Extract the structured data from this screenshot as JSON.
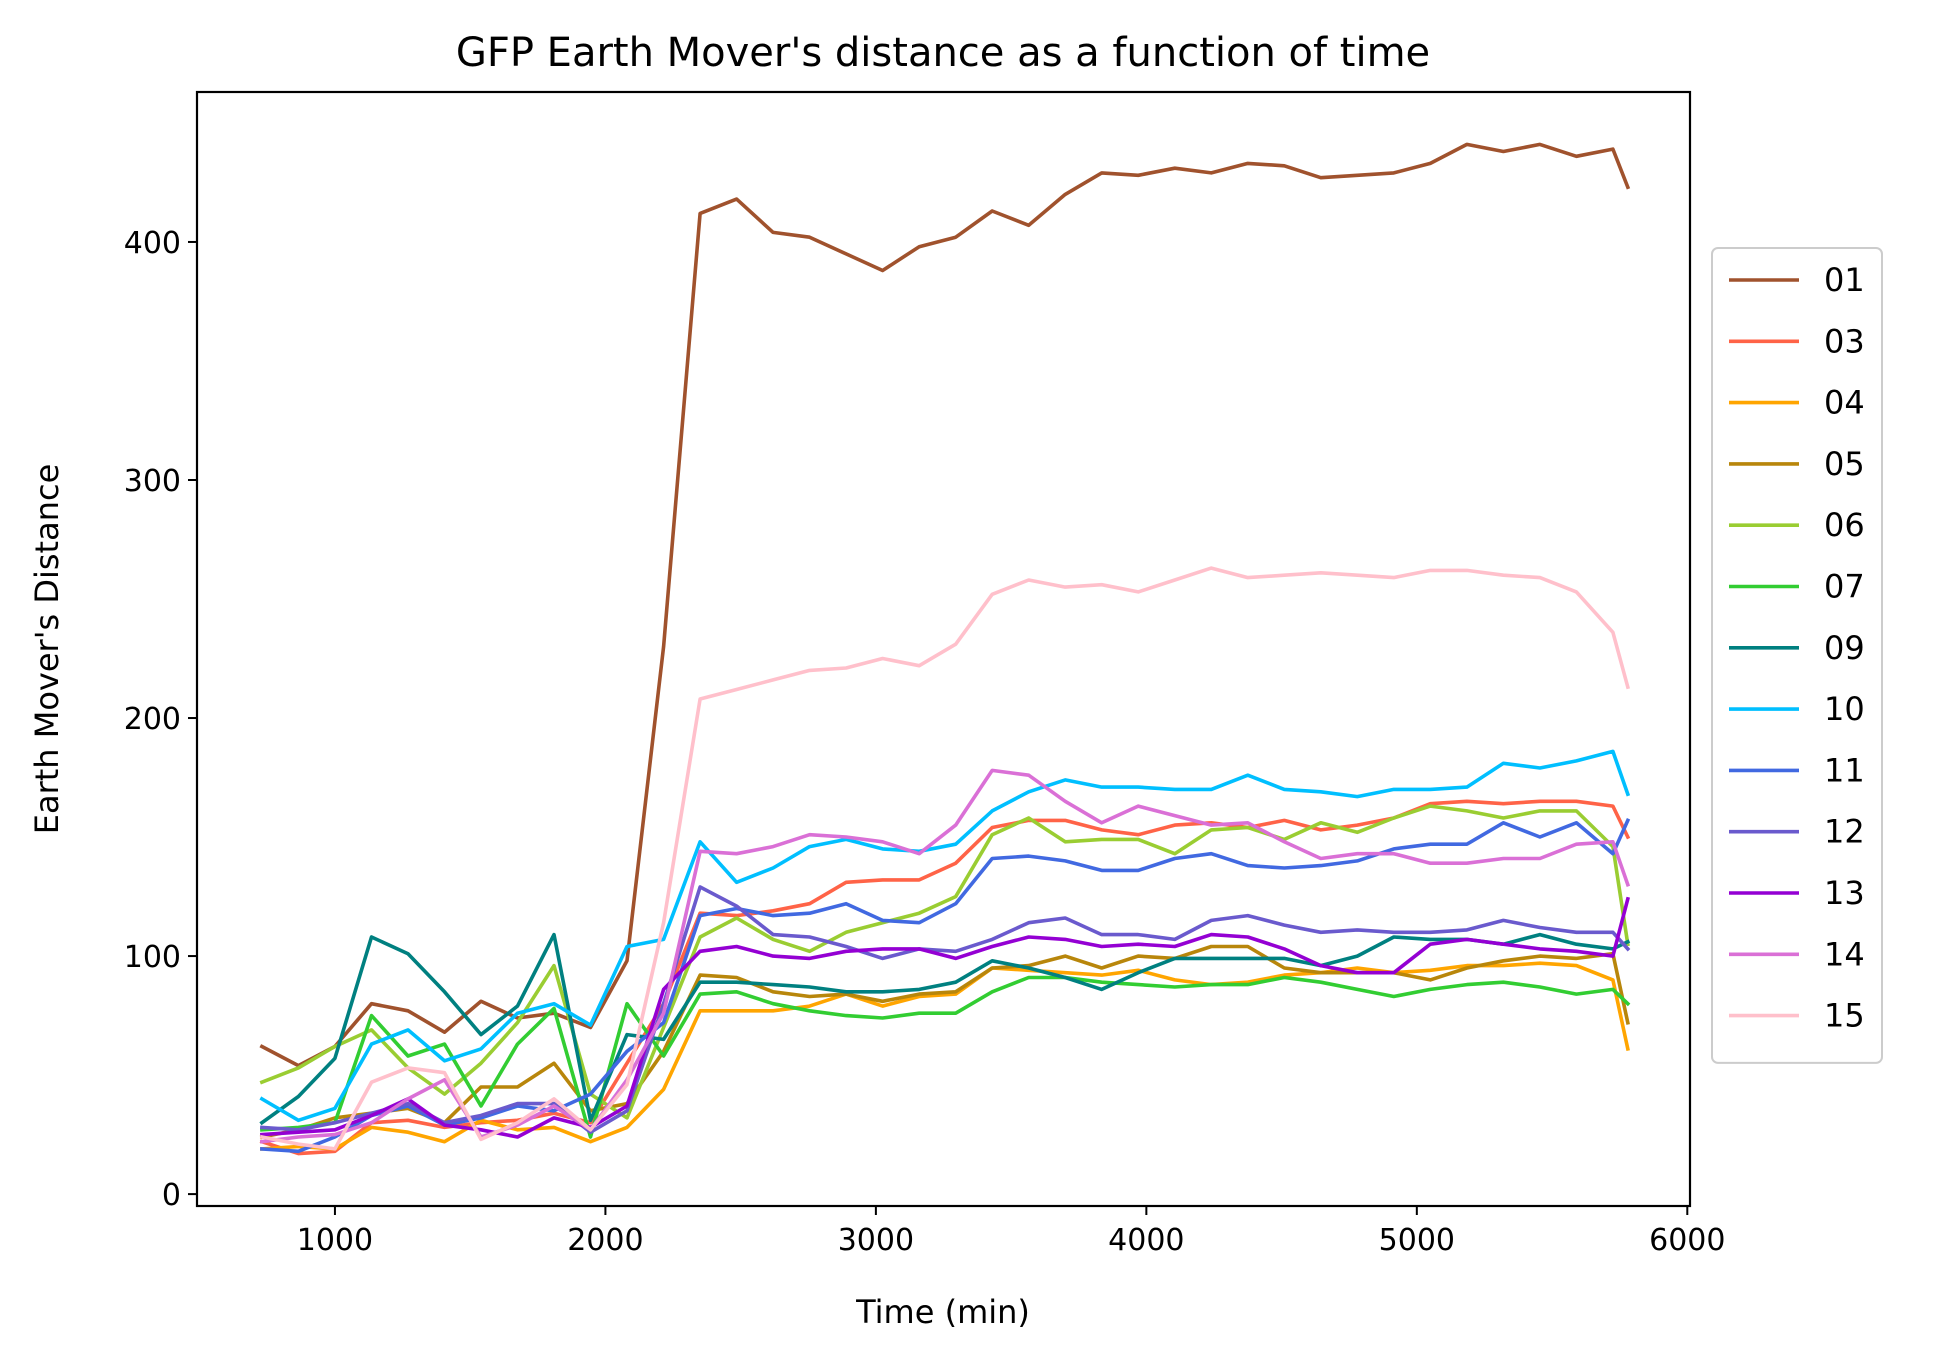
{
  "chart_data": {
    "type": "line",
    "title": "GFP Earth Mover's distance as a function of time",
    "xlabel": "Time (min)",
    "ylabel": "Earth Mover's Distance",
    "xlim": [
      490,
      6010
    ],
    "ylim": [
      -5,
      463
    ],
    "xticks": [
      1000,
      2000,
      3000,
      4000,
      5000,
      6000
    ],
    "yticks": [
      0,
      100,
      200,
      300,
      400
    ],
    "grid": false,
    "legend_position": "center-right-outside",
    "x": [
      730,
      865,
      1000,
      1135,
      1270,
      1405,
      1540,
      1675,
      1810,
      1945,
      2080,
      2215,
      2350,
      2485,
      2620,
      2755,
      2890,
      3025,
      3160,
      3295,
      3430,
      3565,
      3700,
      3835,
      3970,
      4105,
      4240,
      4375,
      4510,
      4645,
      4780,
      4915,
      5050,
      5185,
      5320,
      5455,
      5590,
      5725,
      5780
    ],
    "series": [
      {
        "name": "01",
        "color": "#a0522d",
        "values": [
          62,
          54,
          62,
          80,
          77,
          68,
          81,
          74,
          76,
          70,
          98,
          230,
          412,
          418,
          404,
          402,
          395,
          388,
          398,
          402,
          413,
          407,
          420,
          429,
          428,
          431,
          429,
          433,
          432,
          427,
          428,
          429,
          433,
          441,
          438,
          441,
          436,
          439,
          423
        ]
      },
      {
        "name": "03",
        "color": "#ff6347",
        "values": [
          22,
          17,
          18,
          30,
          31,
          28,
          30,
          31,
          34,
          30,
          55,
          80,
          118,
          117,
          119,
          122,
          131,
          132,
          132,
          139,
          154,
          157,
          157,
          153,
          151,
          155,
          156,
          154,
          157,
          153,
          155,
          158,
          164,
          165,
          164,
          165,
          165,
          163,
          150
        ]
      },
      {
        "name": "04",
        "color": "#ffa500",
        "values": [
          19,
          20,
          19,
          28,
          26,
          22,
          31,
          27,
          28,
          22,
          28,
          44,
          77,
          77,
          77,
          79,
          84,
          79,
          83,
          84,
          95,
          94,
          93,
          92,
          94,
          90,
          88,
          89,
          92,
          93,
          95,
          93,
          94,
          96,
          96,
          97,
          96,
          90,
          61
        ]
      },
      {
        "name": "05",
        "color": "#b8860b",
        "values": [
          24,
          27,
          32,
          34,
          36,
          30,
          45,
          45,
          55,
          35,
          38,
          60,
          92,
          91,
          85,
          83,
          84,
          81,
          84,
          85,
          95,
          96,
          100,
          95,
          100,
          99,
          104,
          104,
          95,
          93,
          93,
          93,
          90,
          95,
          98,
          100,
          99,
          101,
          72
        ]
      },
      {
        "name": "06",
        "color": "#9acd32",
        "values": [
          47,
          53,
          62,
          69,
          53,
          42,
          55,
          72,
          96,
          42,
          32,
          70,
          108,
          116,
          107,
          102,
          110,
          114,
          118,
          125,
          151,
          158,
          148,
          149,
          149,
          143,
          153,
          154,
          149,
          156,
          152,
          158,
          163,
          161,
          158,
          161,
          161,
          146,
          105
        ]
      },
      {
        "name": "07",
        "color": "#32cd32",
        "values": [
          27,
          28,
          30,
          75,
          58,
          63,
          37,
          63,
          78,
          24,
          80,
          58,
          84,
          85,
          80,
          77,
          75,
          74,
          76,
          76,
          85,
          91,
          91,
          89,
          88,
          87,
          88,
          88,
          91,
          89,
          86,
          83,
          86,
          88,
          89,
          87,
          84,
          86,
          80
        ]
      },
      {
        "name": "09",
        "color": "#008080",
        "values": [
          30,
          41,
          57,
          108,
          101,
          85,
          67,
          79,
          109,
          31,
          67,
          65,
          89,
          89,
          88,
          87,
          85,
          85,
          86,
          89,
          98,
          95,
          91,
          86,
          93,
          99,
          99,
          99,
          99,
          96,
          100,
          108,
          107,
          107,
          105,
          109,
          105,
          103,
          106
        ]
      },
      {
        "name": "10",
        "color": "#00bfff",
        "values": [
          40,
          31,
          36,
          63,
          69,
          56,
          61,
          76,
          80,
          71,
          104,
          107,
          148,
          131,
          137,
          146,
          149,
          145,
          144,
          147,
          161,
          169,
          174,
          171,
          171,
          170,
          170,
          176,
          170,
          169,
          167,
          170,
          170,
          171,
          181,
          179,
          182,
          186,
          168
        ]
      },
      {
        "name": "11",
        "color": "#4169e1",
        "values": [
          19,
          18,
          24,
          33,
          37,
          29,
          32,
          37,
          35,
          42,
          60,
          72,
          117,
          120,
          117,
          118,
          122,
          115,
          114,
          122,
          141,
          142,
          140,
          136,
          136,
          141,
          143,
          138,
          137,
          138,
          140,
          145,
          147,
          147,
          156,
          150,
          156,
          143,
          157
        ]
      },
      {
        "name": "12",
        "color": "#6a5acd",
        "values": [
          28,
          27,
          30,
          34,
          38,
          30,
          33,
          38,
          38,
          26,
          35,
          80,
          129,
          121,
          109,
          108,
          104,
          99,
          103,
          102,
          107,
          114,
          116,
          109,
          109,
          107,
          115,
          117,
          113,
          110,
          111,
          110,
          110,
          111,
          115,
          112,
          110,
          110,
          103
        ]
      },
      {
        "name": "13",
        "color": "#9400d3",
        "values": [
          25,
          26,
          27,
          33,
          40,
          29,
          27,
          24,
          32,
          28,
          37,
          86,
          102,
          104,
          100,
          99,
          102,
          103,
          103,
          99,
          104,
          108,
          107,
          104,
          105,
          104,
          109,
          108,
          103,
          96,
          93,
          93,
          105,
          107,
          105,
          103,
          102,
          100,
          124
        ]
      },
      {
        "name": "14",
        "color": "#da70d6",
        "values": [
          22,
          24,
          25,
          30,
          40,
          48,
          24,
          29,
          37,
          27,
          48,
          76,
          144,
          143,
          146,
          151,
          150,
          148,
          143,
          155,
          178,
          176,
          165,
          156,
          163,
          159,
          155,
          156,
          148,
          141,
          143,
          143,
          139,
          139,
          141,
          141,
          147,
          148,
          130
        ]
      },
      {
        "name": "15",
        "color": "#ffc0cb",
        "values": [
          24,
          21,
          19,
          47,
          53,
          51,
          23,
          30,
          40,
          27,
          46,
          114,
          208,
          212,
          216,
          220,
          221,
          225,
          222,
          231,
          252,
          258,
          255,
          256,
          253,
          258,
          263,
          259,
          260,
          261,
          260,
          259,
          262,
          262,
          260,
          259,
          253,
          236,
          213
        ]
      }
    ]
  }
}
